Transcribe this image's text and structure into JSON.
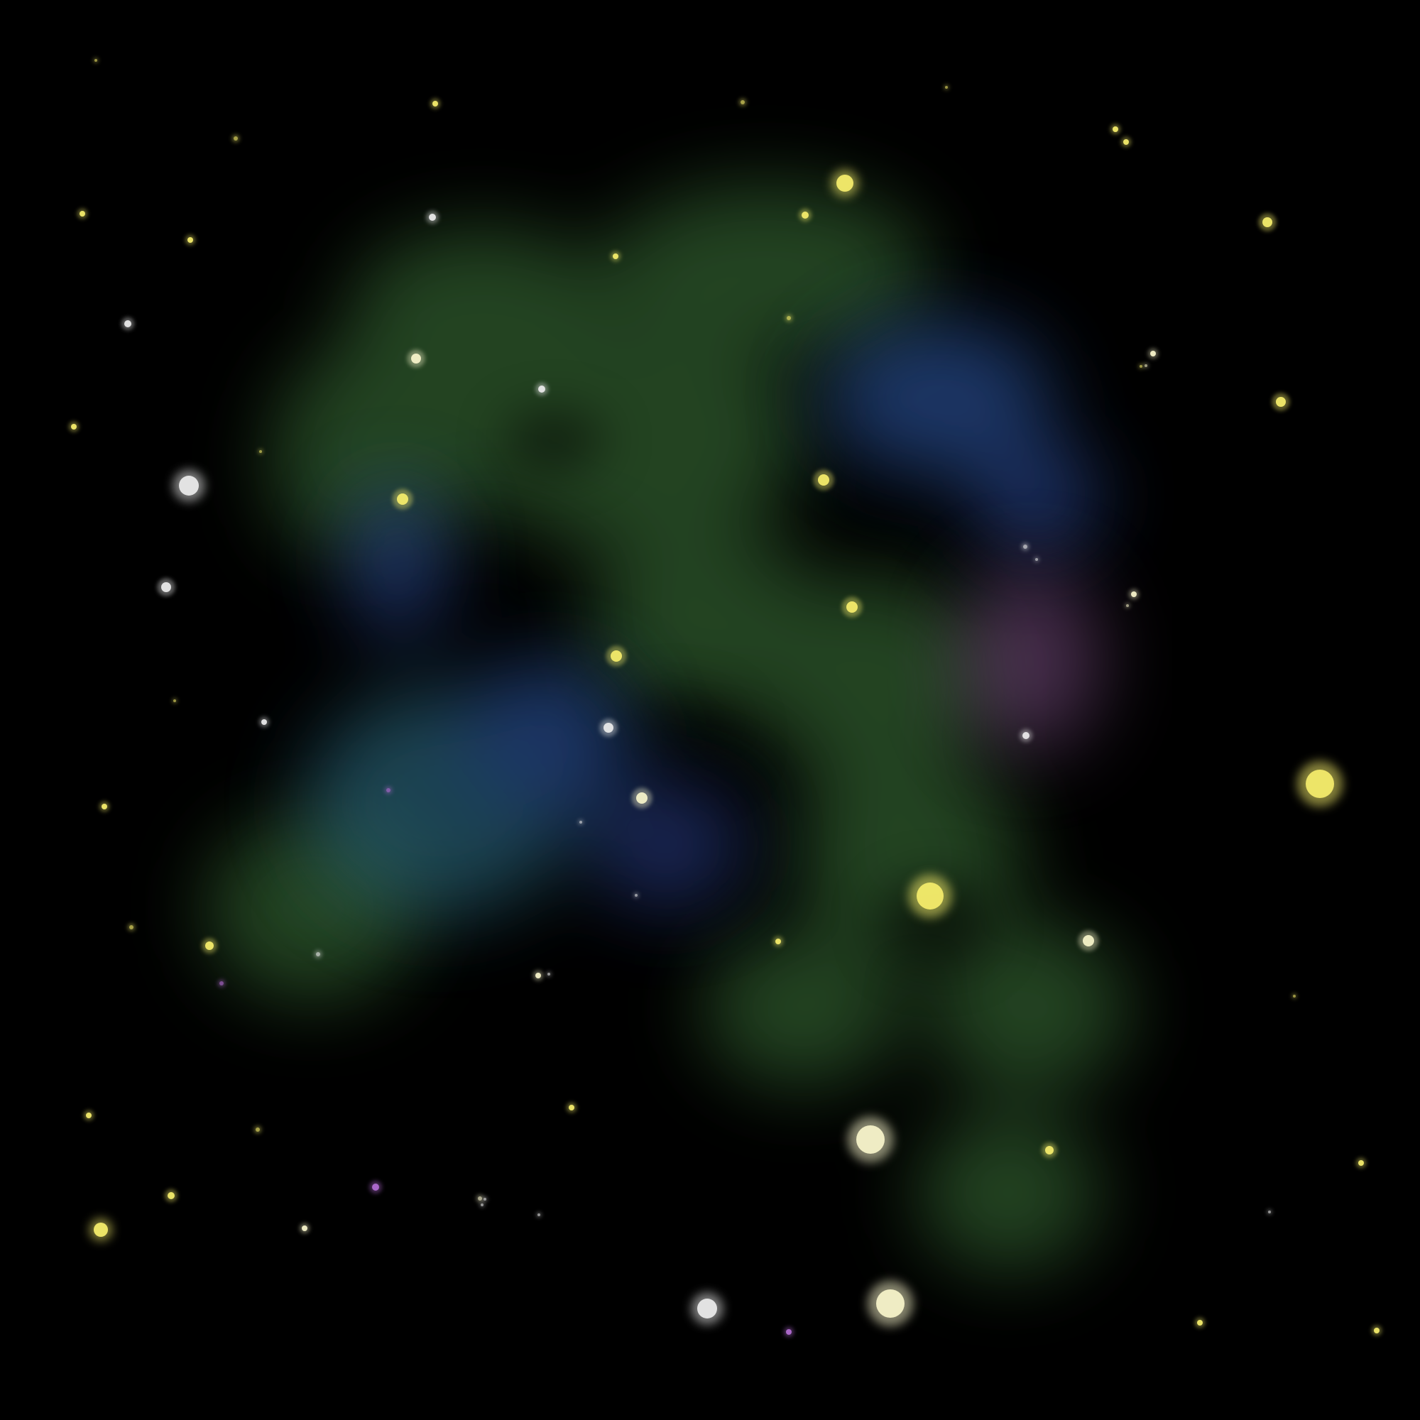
{
  "scene": {
    "title": "",
    "palette": {
      "background": "#000000",
      "nebula_green": "#3f7a3e",
      "nebula_blue": "#2e5aa8",
      "nebula_teal": "#2f6f86",
      "nebula_violet": "#8c5a96",
      "star_yellow": "#f2ea6a",
      "star_cream": "#f4f1c8",
      "star_white": "#e8e8e8",
      "star_violet": "#b06ad0"
    }
  }
}
